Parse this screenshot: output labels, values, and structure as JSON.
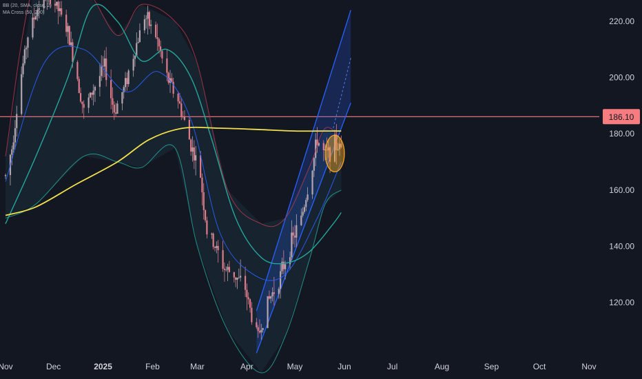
{
  "indicators": {
    "bb_label": "BB (20, SMA, close, 2)",
    "ma_cross_label": "MA Cross (50, 200)"
  },
  "chart_data": {
    "type": "candlestick",
    "y_axis": {
      "ticks": [
        "220.00",
        "200.00",
        "180.00",
        "160.00",
        "140.00",
        "120.00"
      ],
      "tick_values": [
        220,
        200,
        180,
        160,
        140,
        120
      ],
      "range": [
        102,
        232
      ]
    },
    "x_axis": {
      "labels": [
        "Nov",
        "Dec",
        "2025",
        "Feb",
        "Mar",
        "Apr",
        "May",
        "Jun",
        "Jul",
        "Aug",
        "Sep",
        "Oct",
        "Nov"
      ],
      "bold_labels": [
        "2025"
      ],
      "range": [
        "2024-11-01",
        "2025-12-31"
      ]
    },
    "horizontal_line": {
      "value": 186.1,
      "label": "186.10",
      "color": "#f77c80"
    },
    "colors": {
      "background": "#131722",
      "candle_up": "#b5a5ae",
      "candle_down": "#e07b8a",
      "bb_basis": "#2962ff",
      "bb_upper": "#b2384b",
      "bb_lower": "#26a69a",
      "bb_fill": "#1c2e3a",
      "ma50": "#26a69a",
      "ma200": "#f2e14c",
      "channel": "#2962ff",
      "highlight": "#f5a623"
    },
    "candles_anchor_path": [
      [
        "2024-11-01",
        165
      ],
      [
        "2024-11-05",
        175
      ],
      [
        "2024-11-10",
        198
      ],
      [
        "2024-11-15",
        215
      ],
      [
        "2024-11-22",
        226
      ],
      [
        "2024-11-28",
        230
      ],
      [
        "2024-12-04",
        224
      ],
      [
        "2024-12-10",
        216
      ],
      [
        "2024-12-16",
        200
      ],
      [
        "2024-12-20",
        188
      ],
      [
        "2024-12-26",
        196
      ],
      [
        "2025-01-02",
        204
      ],
      [
        "2025-01-08",
        188
      ],
      [
        "2025-01-14",
        196
      ],
      [
        "2025-01-20",
        208
      ],
      [
        "2025-01-27",
        222
      ],
      [
        "2025-02-03",
        215
      ],
      [
        "2025-02-10",
        200
      ],
      [
        "2025-02-17",
        192
      ],
      [
        "2025-02-24",
        178
      ],
      [
        "2025-03-03",
        165
      ],
      [
        "2025-03-07",
        145
      ],
      [
        "2025-03-12",
        140
      ],
      [
        "2025-03-18",
        132
      ],
      [
        "2025-03-24",
        130
      ],
      [
        "2025-03-31",
        125
      ],
      [
        "2025-04-04",
        115
      ],
      [
        "2025-04-08",
        108
      ],
      [
        "2025-04-14",
        120
      ],
      [
        "2025-04-21",
        128
      ],
      [
        "2025-04-28",
        140
      ],
      [
        "2025-05-05",
        150
      ],
      [
        "2025-05-12",
        168
      ],
      [
        "2025-05-15",
        178
      ],
      [
        "2025-05-20",
        172
      ],
      [
        "2025-05-26",
        176
      ],
      [
        "2025-05-30",
        175
      ]
    ],
    "bb_upper": [
      [
        "2024-11-01",
        172
      ],
      [
        "2024-11-20",
        235
      ],
      [
        "2024-12-20",
        232
      ],
      [
        "2025-01-10",
        215
      ],
      [
        "2025-01-25",
        226
      ],
      [
        "2025-02-15",
        220
      ],
      [
        "2025-03-01",
        205
      ],
      [
        "2025-03-20",
        160
      ],
      [
        "2025-04-10",
        148
      ],
      [
        "2025-04-25",
        150
      ],
      [
        "2025-05-10",
        168
      ],
      [
        "2025-05-20",
        182
      ],
      [
        "2025-05-30",
        178
      ]
    ],
    "bb_lower": [
      [
        "2024-11-01",
        150
      ],
      [
        "2024-11-20",
        155
      ],
      [
        "2024-12-20",
        172
      ],
      [
        "2025-01-10",
        170
      ],
      [
        "2025-01-25",
        168
      ],
      [
        "2025-02-15",
        175
      ],
      [
        "2025-03-01",
        140
      ],
      [
        "2025-03-20",
        110
      ],
      [
        "2025-04-10",
        95
      ],
      [
        "2025-04-25",
        108
      ],
      [
        "2025-05-10",
        135
      ],
      [
        "2025-05-20",
        155
      ],
      [
        "2025-05-30",
        160
      ]
    ],
    "bb_basis": [
      [
        "2024-11-01",
        163
      ],
      [
        "2024-11-25",
        205
      ],
      [
        "2024-12-20",
        210
      ],
      [
        "2025-01-15",
        195
      ],
      [
        "2025-02-05",
        202
      ],
      [
        "2025-02-25",
        185
      ],
      [
        "2025-03-15",
        145
      ],
      [
        "2025-04-05",
        130
      ],
      [
        "2025-04-25",
        130
      ],
      [
        "2025-05-15",
        150
      ],
      [
        "2025-05-30",
        170
      ]
    ],
    "ma50": [
      [
        "2024-11-01",
        148
      ],
      [
        "2024-11-20",
        172
      ],
      [
        "2024-12-10",
        200
      ],
      [
        "2024-12-25",
        225
      ],
      [
        "2025-01-10",
        220
      ],
      [
        "2025-01-25",
        206
      ],
      [
        "2025-02-10",
        210
      ],
      [
        "2025-02-25",
        200
      ],
      [
        "2025-03-10",
        178
      ],
      [
        "2025-03-25",
        150
      ],
      [
        "2025-04-10",
        136
      ],
      [
        "2025-04-25",
        134
      ],
      [
        "2025-05-10",
        138
      ],
      [
        "2025-05-25",
        148
      ],
      [
        "2025-05-30",
        152
      ]
    ],
    "ma200": [
      [
        "2024-11-01",
        151
      ],
      [
        "2024-11-20",
        154
      ],
      [
        "2024-12-15",
        162
      ],
      [
        "2025-01-10",
        170
      ],
      [
        "2025-01-30",
        178
      ],
      [
        "2025-02-20",
        182
      ],
      [
        "2025-03-15",
        182
      ],
      [
        "2025-04-10",
        181.5
      ],
      [
        "2025-05-01",
        181
      ],
      [
        "2025-05-20",
        181
      ],
      [
        "2025-05-30",
        181
      ]
    ],
    "channel": {
      "lower_start": [
        "2025-04-07",
        102
      ],
      "lower_end": [
        "2025-06-05",
        191
      ],
      "upper_start": [
        "2025-04-07",
        117
      ],
      "upper_end": [
        "2025-06-05",
        224
      ],
      "midline_dashed_end": [
        "2025-06-05",
        207
      ]
    },
    "highlight_ellipse": {
      "center": [
        "2025-05-26",
        173
      ],
      "rx_days": 6,
      "ry_value": 6.5
    }
  }
}
